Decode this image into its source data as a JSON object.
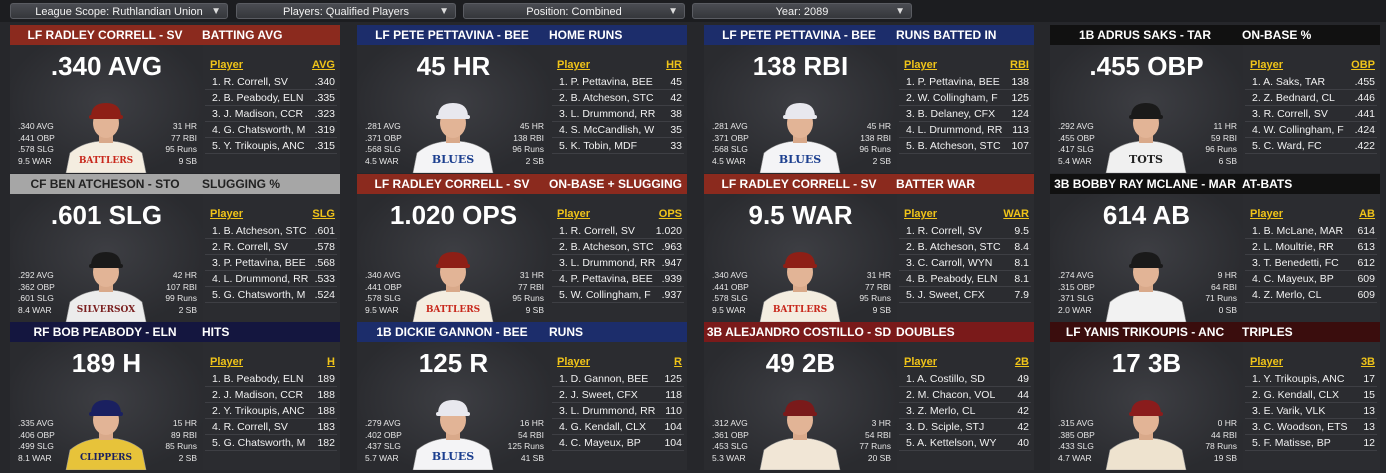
{
  "filters": [
    {
      "label": "League Scope: Ruthlandian Union"
    },
    {
      "label": "Players: Qualified Players"
    },
    {
      "label": "Position: Combined"
    },
    {
      "label": "Year: 2089"
    }
  ],
  "cards": [
    {
      "player": "LF RADLEY CORRELL - SV",
      "category": "BATTING AVG",
      "big": ".340 AVG",
      "hdr_color": "#8b2a1e",
      "stat_col": "AVG",
      "left": [
        ".340 AVG",
        ".441 OBP",
        ".578 SLG",
        "9.5 WAR"
      ],
      "right": [
        "31 HR",
        "77 RBI",
        "95 Runs",
        "9 SB"
      ],
      "cap": "#8e1f16",
      "jersey": "#f4ede0",
      "logo": "BATTLERS",
      "logo_color": "#c8281c",
      "rows": [
        {
          "name": "1. R. Correll, SV",
          "val": ".340"
        },
        {
          "name": "2. B. Peabody, ELN",
          "val": ".335"
        },
        {
          "name": "3. J. Madison, CCR",
          "val": ".323"
        },
        {
          "name": "4. G. Chatsworth, M",
          "val": ".319"
        },
        {
          "name": "5. Y. Trikoupis, ANC",
          "val": ".315"
        }
      ]
    },
    {
      "player": "LF PETE PETTAVINA - BEE",
      "category": "HOME RUNS",
      "big": "45 HR",
      "hdr_color": "#1c2d6b",
      "stat_col": "HR",
      "left": [
        ".281 AVG",
        ".371 OBP",
        ".568 SLG",
        "4.5 WAR"
      ],
      "right": [
        "45 HR",
        "138 RBI",
        "96 Runs",
        "2 SB"
      ],
      "cap": "#e8e8ee",
      "jersey": "#f4f4f6",
      "logo": "BLUES",
      "logo_color": "#1c3f8f",
      "rows": [
        {
          "name": "1. P. Pettavina, BEE",
          "val": "45"
        },
        {
          "name": "2. B. Atcheson, STC",
          "val": "42"
        },
        {
          "name": "3. L. Drummond, RR",
          "val": "38"
        },
        {
          "name": "4. S. McCandlish, W",
          "val": "35"
        },
        {
          "name": "5. K. Tobin, MDF",
          "val": "33"
        }
      ]
    },
    {
      "player": "LF PETE PETTAVINA - BEE",
      "category": "RUNS BATTED IN",
      "big": "138 RBI",
      "hdr_color": "#1c2d6b",
      "stat_col": "RBI",
      "left": [
        ".281 AVG",
        ".371 OBP",
        ".568 SLG",
        "4.5 WAR"
      ],
      "right": [
        "45 HR",
        "138 RBI",
        "96 Runs",
        "2 SB"
      ],
      "cap": "#e8e8ee",
      "jersey": "#f4f4f6",
      "logo": "BLUES",
      "logo_color": "#1c3f8f",
      "rows": [
        {
          "name": "1. P. Pettavina, BEE",
          "val": "138"
        },
        {
          "name": "2. W. Collingham, F",
          "val": "125"
        },
        {
          "name": "3. B. Delaney, CFX",
          "val": "124"
        },
        {
          "name": "4. L. Drummond, RR",
          "val": "113"
        },
        {
          "name": "5. B. Atcheson, STC",
          "val": "107"
        }
      ]
    },
    {
      "player": "1B ADRUS SAKS - TAR",
      "category": "ON-BASE %",
      "big": ".455 OBP",
      "hdr_color": "#111111",
      "stat_col": "OBP",
      "left": [
        ".292 AVG",
        ".455 OBP",
        ".417 SLG",
        "5.4 WAR"
      ],
      "right": [
        "11 HR",
        "59 RBI",
        "96 Runs",
        "6 SB"
      ],
      "cap": "#1a1a1a",
      "jersey": "#f0f0f0",
      "logo": "TOTS",
      "logo_color": "#222222",
      "rows": [
        {
          "name": "1. A. Saks, TAR",
          "val": ".455"
        },
        {
          "name": "2. Z. Bednard, CL",
          "val": ".446"
        },
        {
          "name": "3. R. Correll, SV",
          "val": ".441"
        },
        {
          "name": "4. W. Collingham, F",
          "val": ".424"
        },
        {
          "name": "5. C. Ward, FC",
          "val": ".422"
        }
      ]
    },
    {
      "player": "CF BEN ATCHESON - STO",
      "category": "SLUGGING %",
      "big": ".601 SLG",
      "hdr_color": "#a6a6a6",
      "stat_col": "SLG",
      "left": [
        ".292 AVG",
        ".362 OBP",
        ".601 SLG",
        "8.4 WAR"
      ],
      "right": [
        "42 HR",
        "107 RBI",
        "99 Runs",
        "2 SB"
      ],
      "cap": "#1a1a1a",
      "jersey": "#ececec",
      "logo": "SILVERSOX",
      "logo_color": "#7a1f1f",
      "rows": [
        {
          "name": "1. B. Atcheson, STC",
          "val": ".601"
        },
        {
          "name": "2. R. Correll, SV",
          "val": ".578"
        },
        {
          "name": "3. P. Pettavina, BEE",
          "val": ".568"
        },
        {
          "name": "4. L. Drummond, RR",
          "val": ".533"
        },
        {
          "name": "5. G. Chatsworth, M",
          "val": ".524"
        }
      ]
    },
    {
      "player": "LF RADLEY CORRELL - SV",
      "category": "ON-BASE + SLUGGING",
      "big": "1.020 OPS",
      "hdr_color": "#8b2a1e",
      "stat_col": "OPS",
      "left": [
        ".340 AVG",
        ".441 OBP",
        ".578 SLG",
        "9.5 WAR"
      ],
      "right": [
        "31 HR",
        "77 RBI",
        "95 Runs",
        "9 SB"
      ],
      "cap": "#8e1f16",
      "jersey": "#f4ede0",
      "logo": "BATTLERS",
      "logo_color": "#c8281c",
      "rows": [
        {
          "name": "1. R. Correll, SV",
          "val": "1.020"
        },
        {
          "name": "2. B. Atcheson, STC",
          "val": ".963"
        },
        {
          "name": "3. L. Drummond, RR",
          "val": ".947"
        },
        {
          "name": "4. P. Pettavina, BEE",
          "val": ".939"
        },
        {
          "name": "5. W. Collingham, F",
          "val": ".937"
        }
      ]
    },
    {
      "player": "LF RADLEY CORRELL - SV",
      "category": "BATTER WAR",
      "big": "9.5 WAR",
      "hdr_color": "#8b2a1e",
      "stat_col": "WAR",
      "left": [
        ".340 AVG",
        ".441 OBP",
        ".578 SLG",
        "9.5 WAR"
      ],
      "right": [
        "31 HR",
        "77 RBI",
        "95 Runs",
        "9 SB"
      ],
      "cap": "#8e1f16",
      "jersey": "#f4ede0",
      "logo": "BATTLERS",
      "logo_color": "#c8281c",
      "rows": [
        {
          "name": "1. R. Correll, SV",
          "val": "9.5"
        },
        {
          "name": "2. B. Atcheson, STC",
          "val": "8.4"
        },
        {
          "name": "3. C. Carroll, WYN",
          "val": "8.1"
        },
        {
          "name": "4. B. Peabody, ELN",
          "val": "8.1"
        },
        {
          "name": "5. J. Sweet, CFX",
          "val": "7.9"
        }
      ]
    },
    {
      "player": "3B BOBBY RAY MCLANE - MAR",
      "category": "AT-BATS",
      "big": "614 AB",
      "hdr_color": "#111111",
      "stat_col": "AB",
      "left": [
        ".274 AVG",
        ".315 OBP",
        ".371 SLG",
        "2.0 WAR"
      ],
      "right": [
        "9 HR",
        "64 RBI",
        "71 Runs",
        "0 SB"
      ],
      "cap": "#1a1a1a",
      "jersey": "#f2f2f2",
      "logo": "",
      "logo_color": "#222222",
      "rows": [
        {
          "name": "1. B. McLane, MAR",
          "val": "614"
        },
        {
          "name": "2. L. Moultrie, RR",
          "val": "613"
        },
        {
          "name": "3. T. Benedetti, FC",
          "val": "612"
        },
        {
          "name": "4. C. Mayeux, BP",
          "val": "609"
        },
        {
          "name": "4. Z. Merlo, CL",
          "val": "609"
        }
      ]
    },
    {
      "player": "RF BOB PEABODY - ELN",
      "category": "HITS",
      "big": "189 H",
      "hdr_color": "#14163f",
      "stat_col": "H",
      "left": [
        ".335 AVG",
        ".406 OBP",
        ".499 SLG",
        "8.1 WAR"
      ],
      "right": [
        "15 HR",
        "89 RBI",
        "85 Runs",
        "2 SB"
      ],
      "cap": "#1a2060",
      "jersey": "#e7c33a",
      "logo": "CLIPPERS",
      "logo_color": "#1a2060",
      "rows": [
        {
          "name": "1. B. Peabody, ELN",
          "val": "189"
        },
        {
          "name": "2. J. Madison, CCR",
          "val": "188"
        },
        {
          "name": "2. Y. Trikoupis, ANC",
          "val": "188"
        },
        {
          "name": "4. R. Correll, SV",
          "val": "183"
        },
        {
          "name": "5. G. Chatsworth, M",
          "val": "182"
        }
      ]
    },
    {
      "player": "1B DICKIE GANNON - BEE",
      "category": "RUNS",
      "big": "125 R",
      "hdr_color": "#1c2d6b",
      "stat_col": "R",
      "left": [
        ".279 AVG",
        ".402 OBP",
        ".437 SLG",
        "5.7 WAR"
      ],
      "right": [
        "16 HR",
        "54 RBI",
        "125 Runs",
        "41 SB"
      ],
      "cap": "#e8e8ee",
      "jersey": "#f4f4f6",
      "logo": "BLUES",
      "logo_color": "#1c3f8f",
      "rows": [
        {
          "name": "1. D. Gannon, BEE",
          "val": "125"
        },
        {
          "name": "2. J. Sweet, CFX",
          "val": "118"
        },
        {
          "name": "3. L. Drummond, RR",
          "val": "110"
        },
        {
          "name": "4. G. Kendall, CLX",
          "val": "104"
        },
        {
          "name": "4. C. Mayeux, BP",
          "val": "104"
        }
      ]
    },
    {
      "player": "3B ALEJANDRO COSTILLO - SD",
      "category": "DOUBLES",
      "big": "49 2B",
      "hdr_color": "#7a1a1a",
      "stat_col": "2B",
      "left": [
        ".312 AVG",
        ".361 OBP",
        ".453 SLG",
        "5.3 WAR"
      ],
      "right": [
        "3 HR",
        "54 RBI",
        "77 Runs",
        "20 SB"
      ],
      "cap": "#7a1a1a",
      "jersey": "#f1e6d6",
      "logo": "",
      "logo_color": "#c8281c",
      "rows": [
        {
          "name": "1. A. Costillo, SD",
          "val": "49"
        },
        {
          "name": "2. M. Chacon, VOL",
          "val": "44"
        },
        {
          "name": "3. Z. Merlo, CL",
          "val": "42"
        },
        {
          "name": "3. D. Sciple, STJ",
          "val": "42"
        },
        {
          "name": "5. A. Kettelson, WY",
          "val": "40"
        }
      ]
    },
    {
      "player": "LF YANIS TRIKOUPIS - ANC",
      "category": "TRIPLES",
      "big": "17 3B",
      "hdr_color": "#3a0d0d",
      "stat_col": "3B",
      "left": [
        ".315 AVG",
        ".385 OBP",
        ".433 SLG",
        "4.7 WAR"
      ],
      "right": [
        "0 HR",
        "44 RBI",
        "78 Runs",
        "19 SB"
      ],
      "cap": "#8a1c1c",
      "jersey": "#eee3cf",
      "logo": "",
      "logo_color": "#a02020",
      "rows": [
        {
          "name": "1. Y. Trikoupis, ANC",
          "val": "17"
        },
        {
          "name": "2. G. Kendall, CLX",
          "val": "15"
        },
        {
          "name": "3. E. Varik, VLK",
          "val": "13"
        },
        {
          "name": "3. C. Woodson, ETS",
          "val": "13"
        },
        {
          "name": "5. F. Matisse, BP",
          "val": "12"
        }
      ]
    }
  ]
}
